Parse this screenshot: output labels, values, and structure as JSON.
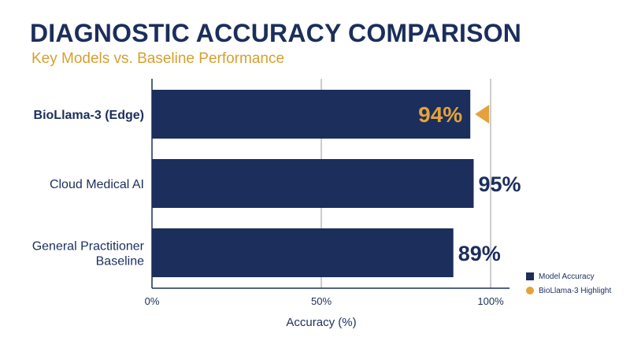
{
  "title": "DIAGNOSTIC ACCURACY COMPARISON",
  "subtitle": "Key Models vs. Baseline Performance",
  "colors": {
    "title": "#1b2e5c",
    "subtitle": "#d6a02e",
    "bar": "#1b2e5c",
    "highlight": "#e3a33a",
    "grid": "#9a9a9a",
    "axis": "#1b2e5c"
  },
  "legend": [
    {
      "label": "Model Accuracy",
      "marker": "square"
    },
    {
      "label": "BioLlama-3 Highlight",
      "marker": "circle"
    }
  ],
  "chart_data": {
    "type": "bar",
    "orientation": "horizontal",
    "categories": [
      {
        "lines": [
          "BioLlama-3 (Edge)"
        ],
        "bold": true,
        "highlight": true
      },
      {
        "lines": [
          "Cloud Medical AI"
        ],
        "bold": false,
        "highlight": false
      },
      {
        "lines": [
          "General Practitioner",
          "Baseline"
        ],
        "bold": false,
        "highlight": false
      }
    ],
    "values": [
      94,
      95,
      89
    ],
    "data_labels": [
      "94%",
      "95%",
      "89%"
    ],
    "xlabel": "Accuracy (%)",
    "xlim": [
      0,
      100
    ],
    "xticks": [
      0,
      50,
      100
    ],
    "xtick_labels": [
      "0%",
      "50%",
      "100%"
    ],
    "grid": true,
    "legend_position": "bottom-right"
  }
}
